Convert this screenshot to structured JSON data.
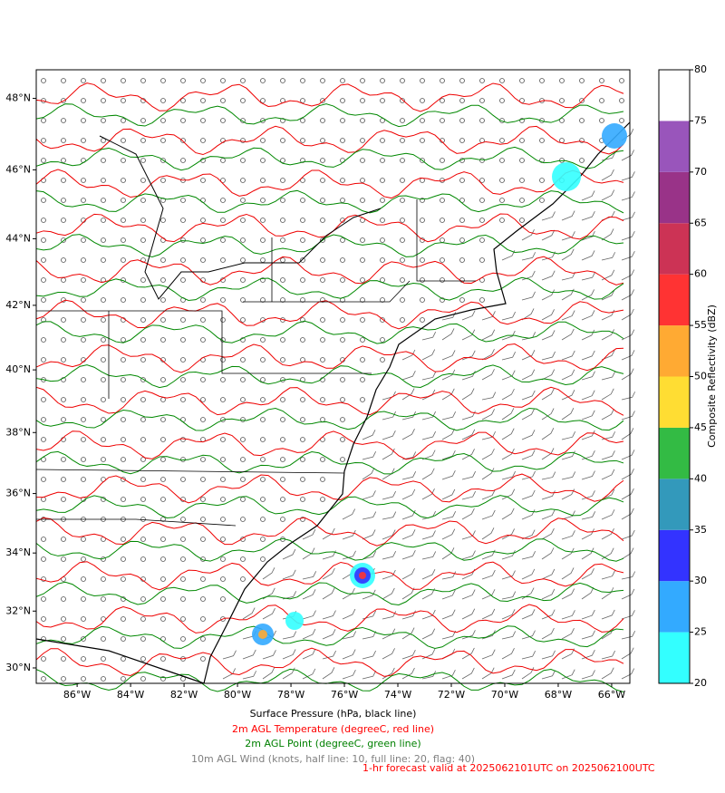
{
  "map": {
    "lonlim": [
      -87.53,
      -65.32
    ],
    "latlim": [
      29.45,
      48.78
    ],
    "lon_ticks": [
      {
        "value": -86,
        "label": "86°W"
      },
      {
        "value": -84,
        "label": "84°W"
      },
      {
        "value": -82,
        "label": "82°W"
      },
      {
        "value": -80,
        "label": "80°W"
      },
      {
        "value": -78,
        "label": "78°W"
      },
      {
        "value": -76,
        "label": "76°W"
      },
      {
        "value": -74,
        "label": "74°W"
      },
      {
        "value": -72,
        "label": "72°W"
      },
      {
        "value": -70,
        "label": "70°W"
      },
      {
        "value": -68,
        "label": "68°W"
      },
      {
        "value": -66,
        "label": "66°W"
      }
    ],
    "lat_ticks": [
      {
        "value": 30,
        "label": "30°N"
      },
      {
        "value": 32,
        "label": "32°N"
      },
      {
        "value": 34,
        "label": "34°N"
      },
      {
        "value": 36,
        "label": "36°N"
      },
      {
        "value": 38,
        "label": "38°N"
      },
      {
        "value": 40,
        "label": "40°N"
      },
      {
        "value": 42,
        "label": "42°N"
      },
      {
        "value": 44,
        "label": "44°N"
      },
      {
        "value": 46,
        "label": "46°N"
      },
      {
        "value": 48,
        "label": "48°N"
      }
    ]
  },
  "colorbar": {
    "label": "Composite Reflectivity (dBZ)",
    "lim": [
      20,
      80
    ],
    "ticks": [
      20,
      25,
      30,
      35,
      40,
      45,
      50,
      55,
      60,
      65,
      70,
      75,
      80
    ],
    "colors": [
      "#33ffff",
      "#33aaff",
      "#3333ff",
      "#3399bb",
      "#33bb44",
      "#ffdd33",
      "#ffaa33",
      "#ff3333",
      "#cc3355",
      "#993388",
      "#9955bb",
      "#ffffff"
    ]
  },
  "captions": [
    {
      "text": "Surface Pressure (hPa, black line)",
      "color": "#000000"
    },
    {
      "text": "2m AGL Temperature (degreeC, red line)",
      "color": "#ff0000"
    },
    {
      "text": "2m AGL Point (degreeC, green line)",
      "color": "#008000"
    },
    {
      "text": "10m AGL Wind (knots, half line: 10, full line: 20, flag: 40)",
      "color": "#808080"
    }
  ],
  "forecast": {
    "text": "1-hr forecast valid at 2025062101UTC on 2025062100UTC",
    "color": "#ff0000"
  }
}
